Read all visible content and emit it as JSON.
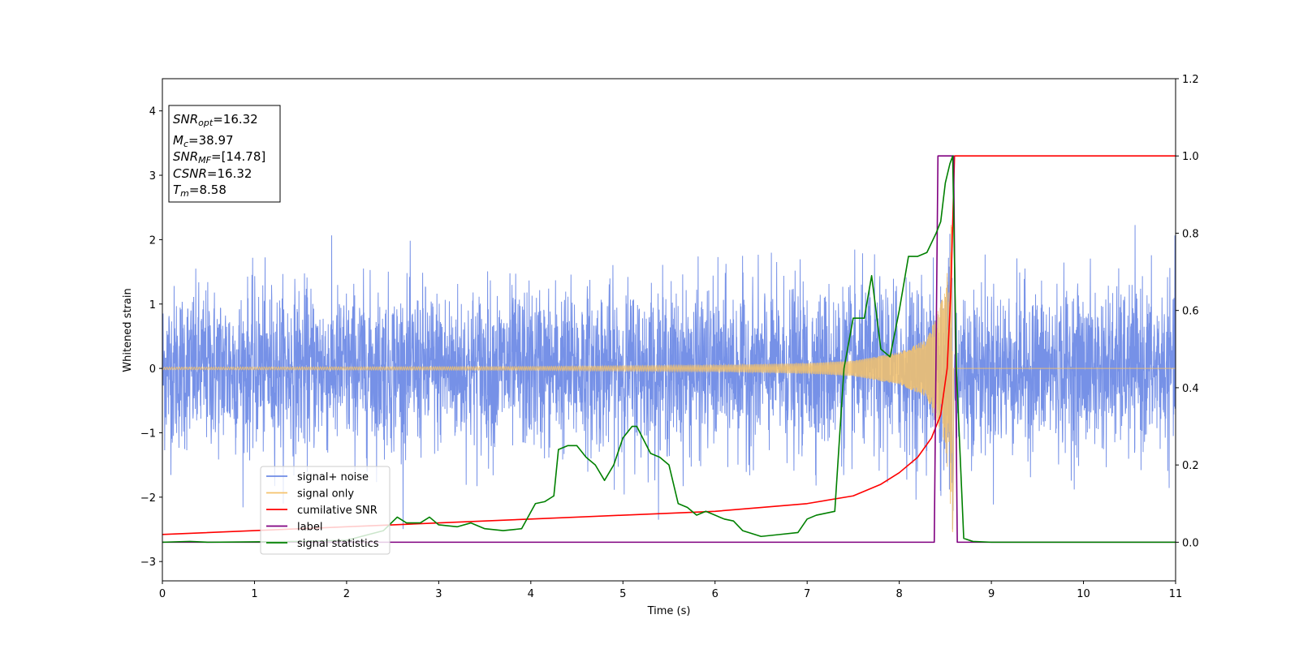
{
  "chart_data": {
    "type": "line",
    "xlabel": "Time (s)",
    "ylabel": "Whitened strain",
    "xlim": [
      0,
      11
    ],
    "ylim": [
      -3.3,
      4.5
    ],
    "y2lim": [
      -0.1,
      1.2
    ],
    "xticks": [
      0,
      1,
      2,
      3,
      4,
      5,
      6,
      7,
      8,
      9,
      10,
      11
    ],
    "yticks": [
      -3,
      -2,
      -1,
      0,
      1,
      2,
      3,
      4
    ],
    "y2ticks": [
      "0.0",
      "0.2",
      "0.4",
      "0.6",
      "0.8",
      "1.0",
      "1.2"
    ],
    "legend_position": "lower-left",
    "colors": {
      "signal_noise": "#6f8be6",
      "signal_only": "#f5c26b",
      "cumulative_snr": "#ff0000",
      "label": "#800080",
      "signal_statistics": "#008000"
    },
    "legend": [
      "signal+ noise",
      "signal only",
      "cumilative SNR",
      "label",
      "signal statistics"
    ],
    "info_box": {
      "snr_opt": {
        "var": "SNR",
        "sub": "opt",
        "value": "=16.32"
      },
      "mc": {
        "var": "M",
        "sub": "c",
        "value": "=38.97"
      },
      "snr_mf": {
        "var": "SNR",
        "sub": "MF",
        "value": "=[14.78]"
      },
      "csnr": {
        "var": "CSNR",
        "sub": "",
        "value": "=16.32"
      },
      "tm": {
        "var": "T",
        "sub": "m",
        "value": "=8.58"
      }
    },
    "signal_noise": {
      "axis": "left",
      "description": "noise band approx amplitude",
      "amplitude_envelope": {
        "x": [
          0,
          11
        ],
        "y_min": [
          -2.0,
          -2.0
        ],
        "y_max": [
          2.0,
          2.0
        ]
      }
    },
    "signal_only": {
      "axis": "left",
      "chirp_merger_time": 8.58,
      "envelope": {
        "x": [
          0,
          4,
          6,
          7,
          7.5,
          8,
          8.3,
          8.5,
          8.58,
          8.6,
          11
        ],
        "amp": [
          0.02,
          0.03,
          0.05,
          0.08,
          0.12,
          0.25,
          0.45,
          1.2,
          2.55,
          0.0,
          0.0
        ]
      }
    },
    "cumulative_snr": {
      "axis": "right",
      "x": [
        0,
        1,
        2,
        3,
        4,
        5,
        6,
        6.5,
        7,
        7.5,
        7.8,
        8.0,
        8.2,
        8.35,
        8.45,
        8.52,
        8.56,
        8.6,
        11
      ],
      "y": [
        0.02,
        0.03,
        0.04,
        0.05,
        0.06,
        0.07,
        0.08,
        0.09,
        0.1,
        0.12,
        0.15,
        0.18,
        0.22,
        0.27,
        0.33,
        0.45,
        0.65,
        1.0,
        1.0
      ]
    },
    "label": {
      "axis": "right",
      "x": [
        0,
        8.38,
        8.42,
        8.59,
        8.63,
        11
      ],
      "y": [
        0.0,
        0.0,
        1.0,
        1.0,
        0.0,
        0.0
      ]
    },
    "signal_statistics": {
      "axis": "right",
      "x": [
        0,
        0.3,
        0.5,
        1,
        1.5,
        2,
        2.4,
        2.55,
        2.65,
        2.8,
        2.9,
        3.0,
        3.2,
        3.35,
        3.5,
        3.7,
        3.9,
        4.05,
        4.15,
        4.25,
        4.3,
        4.4,
        4.5,
        4.6,
        4.7,
        4.8,
        4.9,
        5.0,
        5.1,
        5.15,
        5.3,
        5.4,
        5.5,
        5.6,
        5.7,
        5.8,
        5.9,
        6.0,
        6.1,
        6.2,
        6.3,
        6.5,
        6.7,
        6.9,
        7.0,
        7.1,
        7.2,
        7.3,
        7.4,
        7.5,
        7.55,
        7.62,
        7.7,
        7.8,
        7.9,
        8.0,
        8.1,
        8.2,
        8.3,
        8.4,
        8.45,
        8.5,
        8.55,
        8.58,
        8.62,
        8.7,
        8.8,
        9,
        11
      ],
      "y": [
        0.0,
        0.002,
        0.0,
        0.001,
        0.002,
        0.005,
        0.03,
        0.065,
        0.05,
        0.05,
        0.065,
        0.045,
        0.04,
        0.05,
        0.035,
        0.03,
        0.035,
        0.1,
        0.105,
        0.12,
        0.24,
        0.25,
        0.25,
        0.22,
        0.2,
        0.16,
        0.2,
        0.27,
        0.3,
        0.3,
        0.23,
        0.22,
        0.2,
        0.1,
        0.09,
        0.07,
        0.08,
        0.07,
        0.06,
        0.055,
        0.03,
        0.015,
        0.02,
        0.025,
        0.06,
        0.07,
        0.075,
        0.08,
        0.45,
        0.58,
        0.58,
        0.58,
        0.69,
        0.5,
        0.48,
        0.6,
        0.74,
        0.74,
        0.75,
        0.8,
        0.83,
        0.93,
        0.98,
        1.0,
        0.45,
        0.01,
        0.002,
        0.0,
        0.0
      ]
    }
  }
}
